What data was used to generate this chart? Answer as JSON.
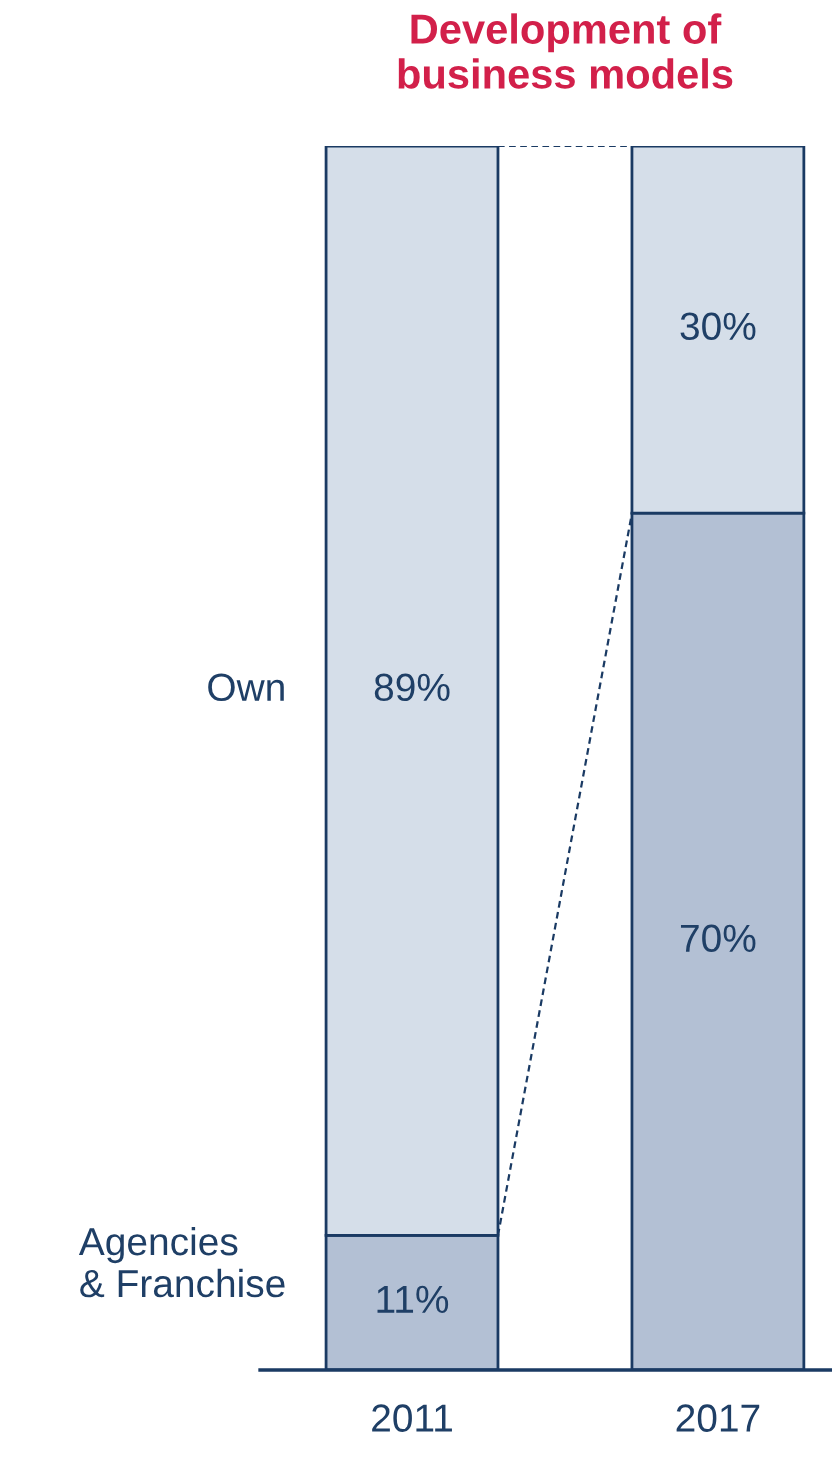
{
  "chart_data": {
    "type": "bar",
    "title": "Development of\nbusiness models",
    "categories": [
      "2011",
      "2017"
    ],
    "stacked": true,
    "legend": false,
    "series": [
      {
        "name": "Agencies\n& Franchise",
        "color": "#b3c0d4",
        "values": [
          11,
          70
        ],
        "value_labels": [
          "11%",
          "70%"
        ]
      },
      {
        "name": "Own",
        "color": "#d5dee9",
        "values": [
          89,
          30
        ],
        "value_labels": [
          "89%",
          "30%"
        ]
      }
    ]
  }
}
